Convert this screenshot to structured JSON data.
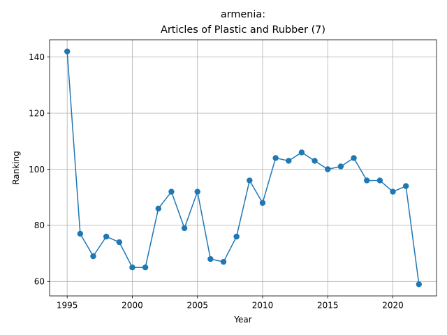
{
  "chart_data": {
    "type": "line",
    "title": "armenia:",
    "subtitle": "Articles of Plastic and Rubber (7)",
    "xlabel": "Year",
    "ylabel": "Ranking",
    "xlim": [
      1993.65,
      2023.35
    ],
    "ylim": [
      54.85,
      146.15
    ],
    "x_ticks": [
      1995,
      2000,
      2005,
      2010,
      2015,
      2020
    ],
    "x_tick_labels": [
      "1995",
      "2000",
      "2005",
      "2010",
      "2015",
      "2020"
    ],
    "y_ticks": [
      60,
      80,
      100,
      120,
      140
    ],
    "y_tick_labels": [
      "60",
      "80",
      "100",
      "120",
      "140"
    ],
    "grid": true,
    "series": [
      {
        "color": "#1f77b4",
        "marker": "circle",
        "x": [
          1995,
          1996,
          1997,
          1998,
          1999,
          2000,
          2001,
          2002,
          2003,
          2004,
          2005,
          2006,
          2007,
          2008,
          2009,
          2010,
          2011,
          2012,
          2013,
          2014,
          2015,
          2016,
          2017,
          2018,
          2019,
          2020,
          2021,
          2022
        ],
        "values": [
          142,
          77,
          69,
          76,
          74,
          65,
          65,
          86,
          92,
          79,
          92,
          68,
          67,
          76,
          96,
          88,
          104,
          103,
          106,
          103,
          100,
          101,
          104,
          96,
          96,
          92,
          94,
          59
        ]
      }
    ]
  }
}
